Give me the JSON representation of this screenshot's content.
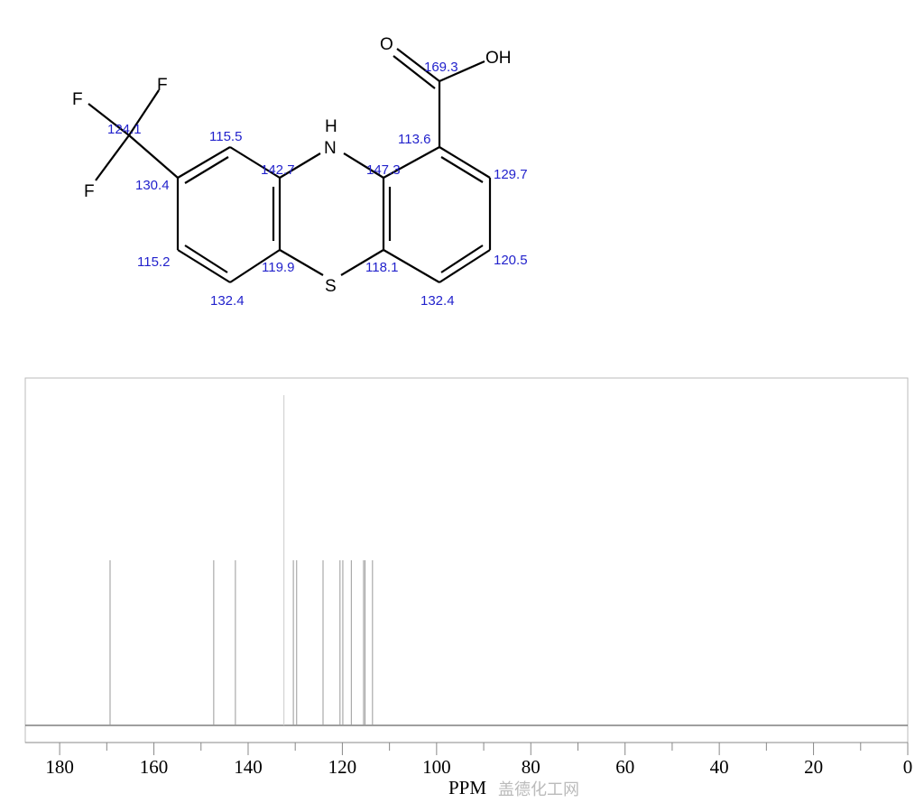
{
  "structure": {
    "atoms": {
      "N": "H",
      "N_label": "N",
      "S": "S",
      "O": "O",
      "OH": "OH",
      "F1": "F",
      "F2": "F",
      "F3": "F"
    },
    "shift_labels": [
      "124.1",
      "115.5",
      "142.7",
      "147.3",
      "113.6",
      "169.3",
      "129.7",
      "130.4",
      "115.2",
      "119.9",
      "118.1",
      "120.5",
      "132.4",
      "132.4"
    ]
  },
  "chart_data": {
    "type": "bar",
    "xlabel": "PPM",
    "xlim": [
      187.3,
      0
    ],
    "x_ticks": [
      180,
      160,
      140,
      120,
      100,
      80,
      60,
      40,
      20,
      0
    ],
    "grid": false,
    "peaks": [
      {
        "ppm": 169.3,
        "intensity": 0.5
      },
      {
        "ppm": 147.3,
        "intensity": 0.5
      },
      {
        "ppm": 142.7,
        "intensity": 0.5
      },
      {
        "ppm": 132.4,
        "intensity": 1.0
      },
      {
        "ppm": 130.4,
        "intensity": 0.5
      },
      {
        "ppm": 129.7,
        "intensity": 0.5
      },
      {
        "ppm": 124.1,
        "intensity": 0.5
      },
      {
        "ppm": 120.5,
        "intensity": 0.5
      },
      {
        "ppm": 119.9,
        "intensity": 0.5
      },
      {
        "ppm": 118.1,
        "intensity": 0.5
      },
      {
        "ppm": 115.5,
        "intensity": 0.5
      },
      {
        "ppm": 115.2,
        "intensity": 0.5
      },
      {
        "ppm": 113.6,
        "intensity": 0.5
      }
    ]
  },
  "watermark": "盖德化工网"
}
